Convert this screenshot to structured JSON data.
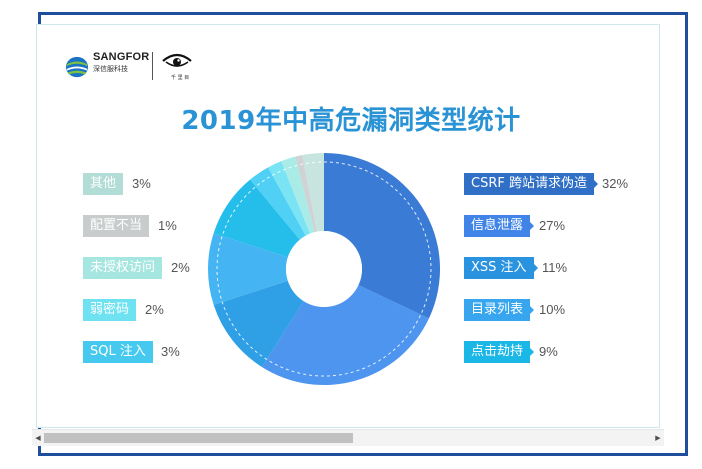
{
  "logo": {
    "brand": "SANGFOR",
    "sub": "深信服科技",
    "partner_caption": "千 里 目"
  },
  "chart_data": {
    "type": "pie",
    "title": "2019年中高危漏洞类型统计",
    "donut": true,
    "slices": [
      {
        "label": "CSRF 跨站请求伪造",
        "value": 32,
        "pct_text": "32%",
        "color": "#3a7bd5"
      },
      {
        "label": "信息泄露",
        "value": 27,
        "pct_text": "27%",
        "color": "#4d95ef"
      },
      {
        "label": "XSS 注入",
        "value": 11,
        "pct_text": "11%",
        "color": "#2f9fe6"
      },
      {
        "label": "目录列表",
        "value": 10,
        "pct_text": "10%",
        "color": "#45b4f2"
      },
      {
        "label": "点击劫持",
        "value": 9,
        "pct_text": "9%",
        "color": "#25bde9"
      },
      {
        "label": "SQL 注入",
        "value": 3,
        "pct_text": "3%",
        "color": "#4fd0f4"
      },
      {
        "label": "弱密码",
        "value": 2,
        "pct_text": "2%",
        "color": "#7ae4f5"
      },
      {
        "label": "未授权访问",
        "value": 2,
        "pct_text": "2%",
        "color": "#a9ebe6"
      },
      {
        "label": "配置不当",
        "value": 1,
        "pct_text": "1%",
        "color": "#cfd3d3"
      },
      {
        "label": "其他",
        "value": 3,
        "pct_text": "3%",
        "color": "#c8e4df"
      }
    ],
    "legend_right": [
      {
        "label": "CSRF 跨站请求伪造",
        "pct": "32%",
        "color": "#2f6fc5"
      },
      {
        "label": "信息泄露",
        "pct": "27%",
        "color": "#3f84e6"
      },
      {
        "label": "XSS 注入",
        "pct": "11%",
        "color": "#2a93e0"
      },
      {
        "label": "目录列表",
        "pct": "10%",
        "color": "#37a6ef"
      },
      {
        "label": "点击劫持",
        "pct": "9%",
        "color": "#1bb7e6"
      }
    ],
    "legend_left": [
      {
        "label": "其他",
        "pct": "3%",
        "color": "#b2ddd6"
      },
      {
        "label": "配置不当",
        "pct": "1%",
        "color": "#c9cccc"
      },
      {
        "label": "未授权访问",
        "pct": "2%",
        "color": "#a6e6e0"
      },
      {
        "label": "弱密码",
        "pct": "2%",
        "color": "#6fe2f2"
      },
      {
        "label": "SQL 注入",
        "pct": "3%",
        "color": "#45c9ef"
      }
    ]
  }
}
